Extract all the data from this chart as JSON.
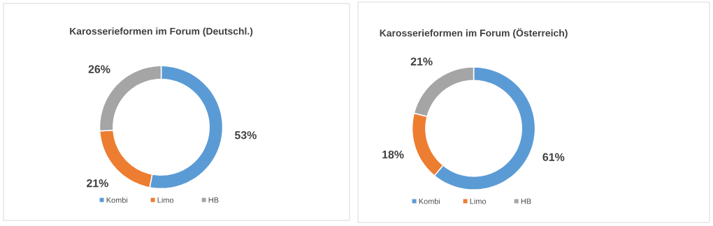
{
  "chart_data": [
    {
      "type": "donut",
      "title": "Karosserieformen im Forum (Deutschl.)",
      "categories": [
        "Kombi",
        "Limo",
        "HB"
      ],
      "values": [
        53,
        21,
        26
      ],
      "colors": [
        "#5b9bd5",
        "#ed7d31",
        "#a5a5a5"
      ],
      "value_labels": [
        "53%",
        "21%",
        "26%"
      ],
      "legend": "bottom"
    },
    {
      "type": "donut",
      "title": "Karosserieformen im Forum (Österreich)",
      "categories": [
        "Kombi",
        "Limo",
        "HB"
      ],
      "values": [
        61,
        18,
        21
      ],
      "colors": [
        "#5b9bd5",
        "#ed7d31",
        "#a5a5a5"
      ],
      "value_labels": [
        "61%",
        "18%",
        "21%"
      ],
      "legend": "bottom"
    }
  ]
}
